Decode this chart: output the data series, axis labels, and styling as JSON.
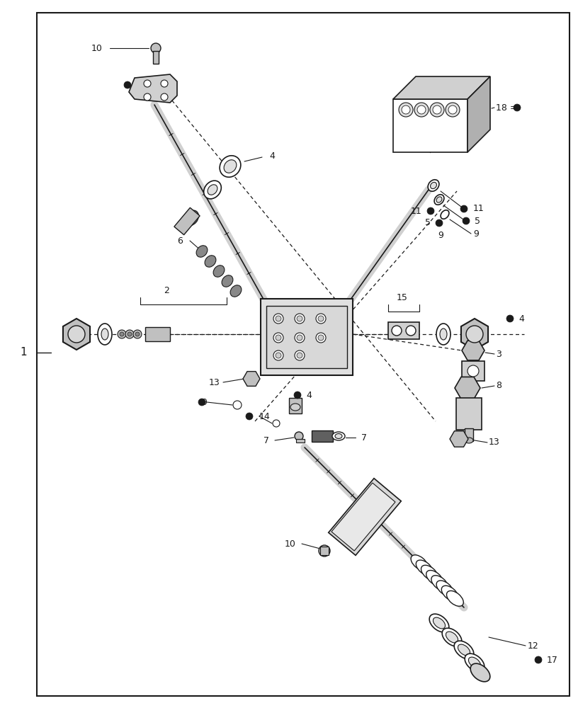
{
  "bg": "#f5f5f5",
  "lc": "#1a1a1a",
  "fig_w": 8.16,
  "fig_h": 10.0,
  "dpi": 100
}
